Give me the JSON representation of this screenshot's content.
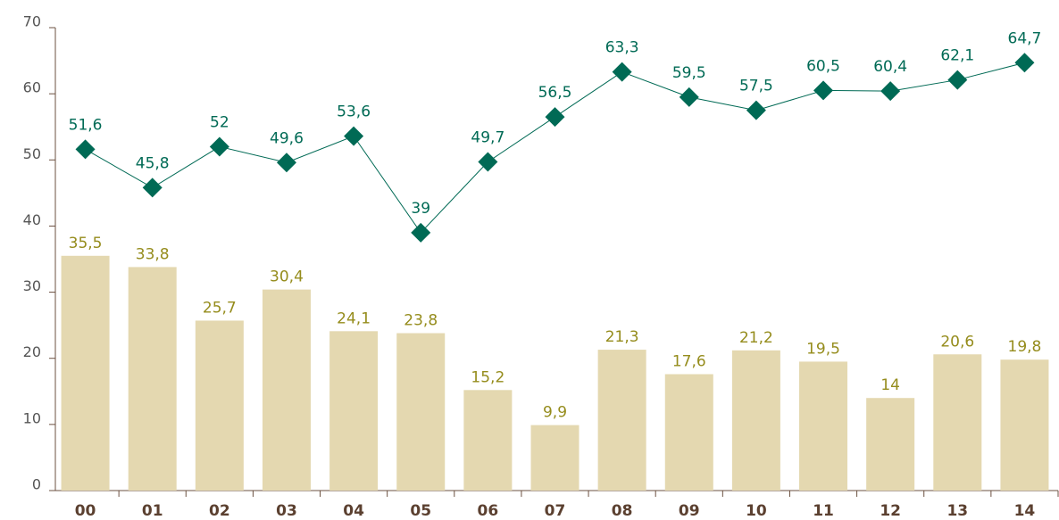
{
  "chart_data": {
    "type": "bar",
    "categories": [
      "00",
      "01",
      "02",
      "03",
      "04",
      "05",
      "06",
      "07",
      "08",
      "09",
      "10",
      "11",
      "12",
      "13",
      "14"
    ],
    "series": [
      {
        "type": "bar",
        "color": "#e4d8b0",
        "label_color": "#958c1c",
        "values": [
          35.5,
          33.8,
          25.7,
          30.4,
          24.1,
          23.8,
          15.2,
          9.9,
          21.3,
          17.6,
          21.2,
          19.5,
          14,
          20.6,
          19.8
        ],
        "value_labels": [
          "35,5",
          "33,8",
          "25,7",
          "30,4",
          "24,1",
          "23,8",
          "15,2",
          "9,9",
          "21,3",
          "17,6",
          "21,2",
          "19,5",
          "14",
          "20,6",
          "19,8"
        ]
      },
      {
        "type": "line",
        "color": "#006a55",
        "label_color": "#006a55",
        "values": [
          51.6,
          45.8,
          52,
          49.6,
          53.6,
          39,
          49.7,
          56.5,
          63.3,
          59.5,
          57.5,
          60.5,
          60.4,
          62.1,
          64.7
        ],
        "value_labels": [
          "51,6",
          "45,8",
          "52",
          "49,6",
          "53,6",
          "39",
          "49,7",
          "56,5",
          "63,3",
          "59,5",
          "57,5",
          "60,5",
          "60,4",
          "62,1",
          "64,7"
        ]
      }
    ],
    "ylim": [
      0,
      70
    ],
    "yticks": [
      0,
      10,
      20,
      30,
      40,
      50,
      60,
      70
    ]
  }
}
